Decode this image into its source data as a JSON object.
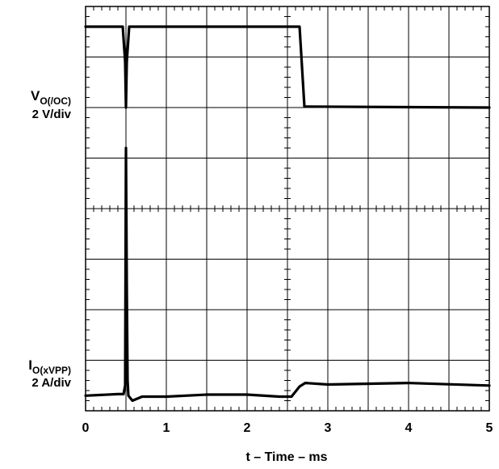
{
  "chart_data": {
    "type": "line",
    "xlabel": "t – Time – ms",
    "xticks": [
      "0",
      "1",
      "2",
      "3",
      "4",
      "5"
    ],
    "xlim": [
      0,
      5
    ],
    "grid": true,
    "grid_divisions": {
      "x": 10,
      "y": 8
    },
    "channels": [
      {
        "label_main": "V",
        "label_sub": "O(/OC)",
        "scale": "2 V/div",
        "divisions": [
          0,
          8
        ],
        "x": [
          0,
          0.46,
          0.49,
          0.5,
          0.51,
          0.54,
          2.65,
          2.71,
          5
        ],
        "y": [
          7.6,
          7.6,
          6.9,
          6.0,
          6.9,
          7.6,
          7.6,
          6.02,
          6.0
        ]
      },
      {
        "label_main": "I",
        "label_sub": "O(xVPP)",
        "scale": "2 A/div",
        "divisions": [
          0,
          8
        ],
        "x": [
          0,
          0.4,
          0.47,
          0.49,
          0.5,
          0.51,
          0.52,
          0.53,
          0.58,
          0.7,
          1.0,
          1.5,
          2.0,
          2.4,
          2.55,
          2.6,
          2.65,
          2.72,
          3.0,
          4.0,
          5.0
        ],
        "y": [
          0.3,
          0.33,
          0.33,
          0.5,
          5.2,
          2.5,
          0.6,
          0.3,
          0.2,
          0.28,
          0.28,
          0.32,
          0.32,
          0.28,
          0.28,
          0.38,
          0.48,
          0.55,
          0.52,
          0.55,
          0.5
        ]
      }
    ]
  }
}
